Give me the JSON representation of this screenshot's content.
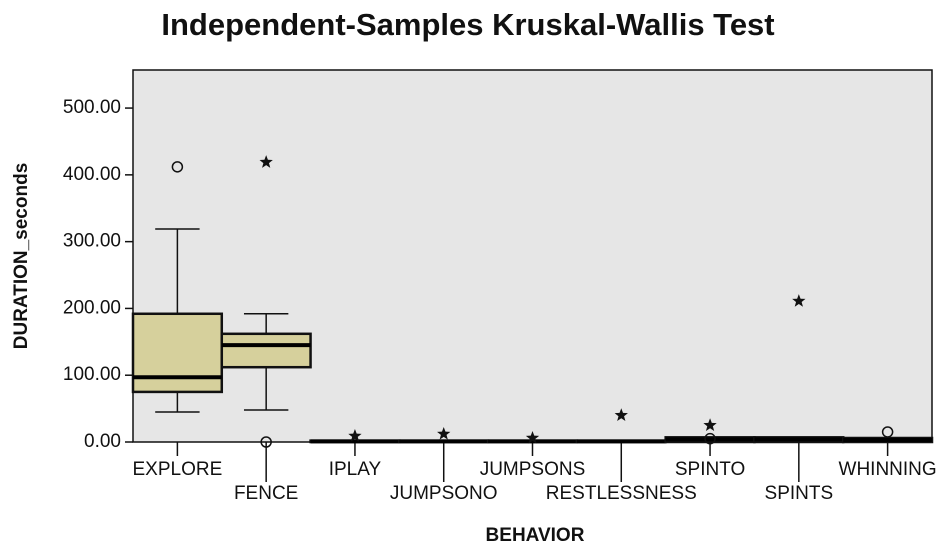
{
  "chart_data": {
    "type": "box",
    "title": "Independent-Samples Kruskal-Wallis Test",
    "x_label": "BEHAVIOR",
    "y_label": "DURATION_seconds",
    "categories": [
      "EXPLORE",
      "FENCE",
      "IPLAY",
      "JUMPSONO",
      "JUMPSONS",
      "RESTLESSNESS",
      "SPINTO",
      "SPINTS",
      "WHINNING"
    ],
    "boxes": [
      {
        "min": 45,
        "q1": 75,
        "median": 97,
        "q3": 192,
        "max": 319,
        "outliers": [
          412
        ],
        "extremes": []
      },
      {
        "min": 48,
        "q1": 112,
        "median": 145,
        "q3": 162,
        "max": 192,
        "outliers": [
          0
        ],
        "extremes": [
          419
        ]
      },
      {
        "min": 0,
        "q1": 0,
        "median": 1,
        "q3": 2,
        "max": 2,
        "outliers": [],
        "extremes": [
          9
        ]
      },
      {
        "min": 0,
        "q1": 0,
        "median": 1,
        "q3": 2,
        "max": 2,
        "outliers": [],
        "extremes": [
          12
        ]
      },
      {
        "min": 0,
        "q1": 0,
        "median": 1,
        "q3": 2,
        "max": 2,
        "outliers": [],
        "extremes": [
          6
        ]
      },
      {
        "min": 0,
        "q1": 0,
        "median": 1,
        "q3": 2,
        "max": 2,
        "outliers": [],
        "extremes": [
          40
        ]
      },
      {
        "min": 0,
        "q1": 0,
        "median": 4,
        "q3": 7,
        "max": 7,
        "outliers": [
          5
        ],
        "extremes": [
          25
        ]
      },
      {
        "min": 0,
        "q1": 0,
        "median": 4,
        "q3": 7,
        "max": 7,
        "outliers": [],
        "extremes": [
          211
        ]
      },
      {
        "min": 0,
        "q1": 0,
        "median": 3,
        "q3": 6,
        "max": 6,
        "outliers": [
          15
        ],
        "extremes": []
      }
    ],
    "color": "#d6d09c",
    "background": "#e6e6e6",
    "ylim": [
      0,
      557
    ],
    "yticks": [
      {
        "value": 0,
        "label": "0.00"
      },
      {
        "value": 100,
        "label": "100.00"
      },
      {
        "value": 200,
        "label": "200.00"
      },
      {
        "value": 300,
        "label": "300.00"
      },
      {
        "value": 400,
        "label": "400.00"
      },
      {
        "value": 500,
        "label": "500.00"
      }
    ]
  }
}
